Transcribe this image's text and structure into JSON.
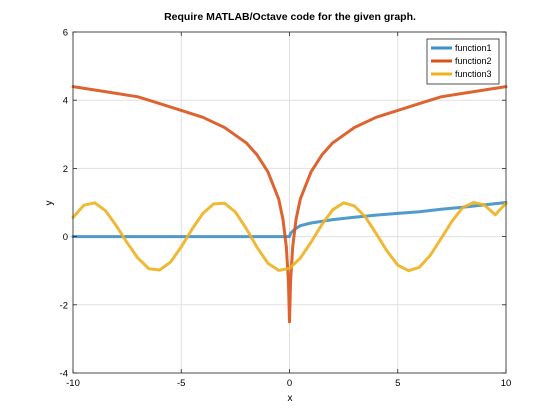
{
  "chart_data": {
    "type": "line",
    "title": "Require MATLAB/Octave code for the given graph.",
    "xlabel": "x",
    "ylabel": "y",
    "xlim": [
      -10,
      10
    ],
    "ylim": [
      -4,
      6
    ],
    "xticks": [
      -10,
      -5,
      0,
      5,
      10
    ],
    "yticks": [
      -4,
      -2,
      0,
      2,
      4,
      6
    ],
    "grid": true,
    "legend_position": "top-right",
    "series": [
      {
        "name": "function1",
        "color": "#3d8fc8",
        "x": [
          -10,
          -5,
          -1,
          -0.5,
          0,
          0.05,
          0.25,
          0.5,
          1,
          2,
          3,
          4,
          5,
          6,
          7,
          8,
          9,
          10
        ],
        "y": [
          0,
          0,
          0,
          0,
          0,
          0.1,
          0.22,
          0.32,
          0.4,
          0.5,
          0.57,
          0.63,
          0.68,
          0.73,
          0.8,
          0.86,
          0.93,
          1.0
        ]
      },
      {
        "name": "function2",
        "color": "#d95319",
        "x": [
          -10,
          -9,
          -8,
          -7,
          -6,
          -5,
          -4,
          -3,
          -2,
          -1.5,
          -1,
          -0.5,
          -0.3,
          -0.15,
          -0.05,
          0,
          0.05,
          0.15,
          0.3,
          0.5,
          1,
          1.5,
          2,
          3,
          4,
          5,
          6,
          7,
          8,
          9,
          10
        ],
        "y": [
          4.4,
          4.3,
          4.2,
          4.1,
          3.9,
          3.7,
          3.5,
          3.2,
          2.75,
          2.4,
          1.9,
          1.1,
          0.5,
          -0.3,
          -1.3,
          -2.5,
          -1.3,
          -0.3,
          0.5,
          1.1,
          1.9,
          2.4,
          2.75,
          3.2,
          3.5,
          3.7,
          3.9,
          4.1,
          4.2,
          4.3,
          4.4
        ]
      },
      {
        "name": "function3",
        "color": "#edb120",
        "x": [
          -10,
          -9.5,
          -9,
          -8.5,
          -8,
          -7.5,
          -7,
          -6.5,
          -6,
          -5.5,
          -5,
          -4.5,
          -4,
          -3.5,
          -3,
          -2.5,
          -2,
          -1.5,
          -1,
          -0.5,
          0,
          0.5,
          1,
          1.5,
          2,
          2.5,
          3,
          3.5,
          4,
          4.5,
          5,
          5.5,
          6,
          6.5,
          7,
          7.5,
          8,
          8.5,
          9,
          9.5,
          10
        ],
        "y": [
          0.56,
          0.92,
          0.99,
          0.76,
          0.32,
          -0.18,
          -0.63,
          -0.94,
          -0.98,
          -0.75,
          -0.3,
          0.22,
          0.68,
          0.96,
          0.98,
          0.72,
          0.24,
          -0.31,
          -0.78,
          -0.99,
          -0.93,
          -0.63,
          -0.16,
          0.36,
          0.79,
          0.99,
          0.9,
          0.58,
          0.09,
          -0.42,
          -0.84,
          -1.0,
          -0.9,
          -0.55,
          -0.06,
          0.45,
          0.85,
          1.0,
          0.93,
          0.64,
          0.98
        ]
      }
    ]
  }
}
